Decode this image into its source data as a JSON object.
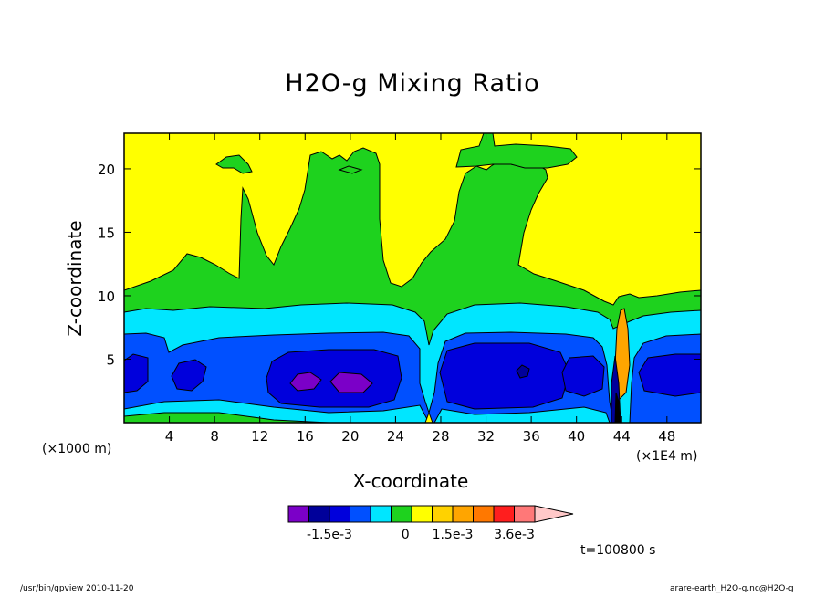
{
  "chart_data": {
    "type": "heatmap",
    "title": "H2O-g Mixing Ratio",
    "xlabel": "X-coordinate",
    "ylabel": "Z-coordinate",
    "x_unit_left": "(×1000 m)",
    "x_unit_right": "(×1E4 m)",
    "xlim": [
      0,
      51
    ],
    "ylim": [
      0,
      22.8
    ],
    "x_ticks": [
      4,
      8,
      12,
      16,
      20,
      24,
      28,
      32,
      36,
      40,
      44,
      48
    ],
    "y_ticks": [
      5,
      10,
      15,
      20
    ],
    "x_tick_labels": [
      "4",
      "8",
      "12",
      "16",
      "20",
      "24",
      "28",
      "32",
      "36",
      "40",
      "44",
      "48"
    ],
    "y_tick_labels": [
      "5",
      "10",
      "15",
      "20"
    ],
    "time_label": "t=100800 s",
    "colorbar": {
      "levels": [
        "-2.7e-3",
        "-2.1e-3",
        "-1.5e-3",
        "-1.2e-3",
        "-0.9e-3",
        "-0.3e-3",
        "0",
        "0.6e-3",
        "1.5e-3",
        "2.1e-3",
        "2.7e-3",
        "3.6e-3",
        "extend"
      ],
      "colors": [
        "#7b00c8",
        "#00009a",
        "#0000dc",
        "#0050ff",
        "#00e6ff",
        "#1ed21e",
        "#ffff00",
        "#ffd200",
        "#ffa500",
        "#ff7800",
        "#ff1e1e",
        "#ff7878",
        "#ffc8c8"
      ],
      "tick_labels": [
        "-1.5e-3",
        "0",
        "1.5e-3",
        "3.6e-3"
      ]
    },
    "grid": false,
    "legend": "colorbar-bottom"
  },
  "footer": {
    "left": "/usr/bin/gpview   2010-11-20",
    "right": "arare-earth_H2O-g.nc@H2O-g"
  }
}
